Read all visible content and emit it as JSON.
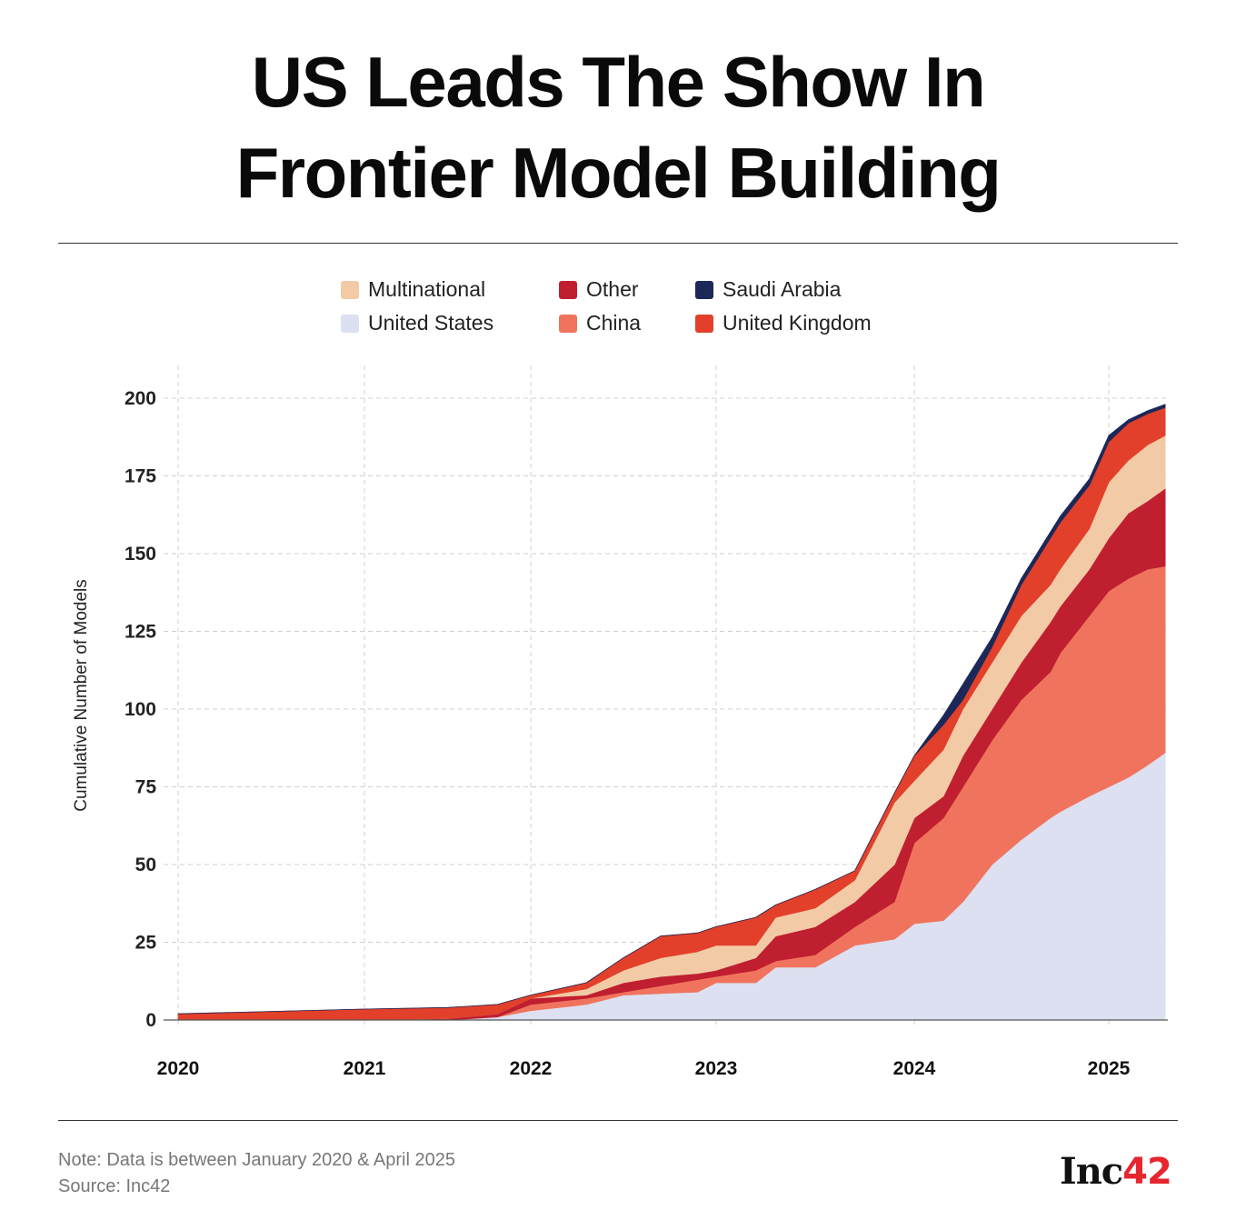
{
  "title_lines": [
    "US Leads The Show In",
    "Frontier Model Building"
  ],
  "footer": {
    "note": "Note: Data is between January 2020 & April 2025",
    "source": "Source: Inc42",
    "logo": "Inc42"
  },
  "chart_data": {
    "type": "area",
    "stacked": true,
    "title": "US Leads The Show In Frontier Model Building",
    "xlabel": "",
    "ylabel": "Cumulative Number of Models",
    "ylim": [
      0,
      200
    ],
    "yticks": [
      0,
      25,
      50,
      75,
      100,
      125,
      150,
      175,
      200
    ],
    "xticks": [
      "2020",
      "2021",
      "2022",
      "2023",
      "2024",
      "2025"
    ],
    "grid": true,
    "legend_position": "top-center",
    "x": [
      2020,
      2021,
      2021.5,
      2021.8,
      2022,
      2022.3,
      2022.5,
      2022.7,
      2022.9,
      2023,
      2023.2,
      2023.3,
      2023.5,
      2023.7,
      2023.9,
      2024,
      2024.15,
      2024.25,
      2024.4,
      2024.55,
      2024.7,
      2024.75,
      2024.9,
      2025,
      2025.1,
      2025.2,
      2025.29
    ],
    "series": [
      {
        "name": "United States",
        "color": "#dce0f1",
        "values": [
          0,
          0,
          0,
          1,
          3,
          5,
          8,
          8.5,
          9,
          12,
          12,
          17,
          17,
          24,
          26,
          31,
          32,
          38,
          50,
          58,
          65,
          67,
          72,
          75,
          78,
          82,
          86
        ]
      },
      {
        "name": "China",
        "color": "#f0745d",
        "values": [
          0,
          0,
          0,
          0,
          2,
          2,
          1,
          2.5,
          4,
          2,
          4,
          2,
          4,
          6,
          12,
          26,
          33,
          37,
          40,
          45,
          47,
          51,
          58,
          63,
          64,
          63,
          60
        ]
      },
      {
        "name": "Other",
        "color": "#c01f30",
        "values": [
          0,
          0,
          0.5,
          1,
          2,
          1,
          3,
          3,
          2,
          2,
          4,
          8,
          9,
          8,
          12,
          8,
          7,
          10,
          10,
          12,
          16,
          15,
          15,
          17,
          21,
          22,
          25
        ]
      },
      {
        "name": "Multinational",
        "color": "#f2caa6",
        "values": [
          0,
          0,
          0,
          0,
          0,
          2,
          4,
          6,
          7,
          8,
          4,
          6,
          6,
          7,
          20,
          12,
          15,
          15,
          15,
          15,
          12,
          12,
          13,
          18,
          17,
          18,
          17
        ]
      },
      {
        "name": "United Kingdom",
        "color": "#e2402a",
        "values": [
          2,
          3.5,
          3.5,
          3,
          1,
          2,
          4,
          7,
          6,
          6,
          9,
          4,
          6,
          3,
          3,
          8,
          8,
          3,
          5,
          10,
          15,
          15,
          14,
          13,
          12,
          10,
          9
        ]
      },
      {
        "name": "Saudi Arabia",
        "color": "#1c2858",
        "values": [
          0,
          0,
          0,
          0,
          0,
          0,
          0,
          0,
          0,
          0,
          0,
          0,
          0,
          0,
          0,
          0,
          3,
          5,
          3,
          2,
          2,
          2,
          2,
          2,
          1,
          1,
          1
        ]
      }
    ],
    "legend_order": [
      "Multinational",
      "Other",
      "Saudi Arabia",
      "United States",
      "China",
      "United Kingdom"
    ]
  }
}
